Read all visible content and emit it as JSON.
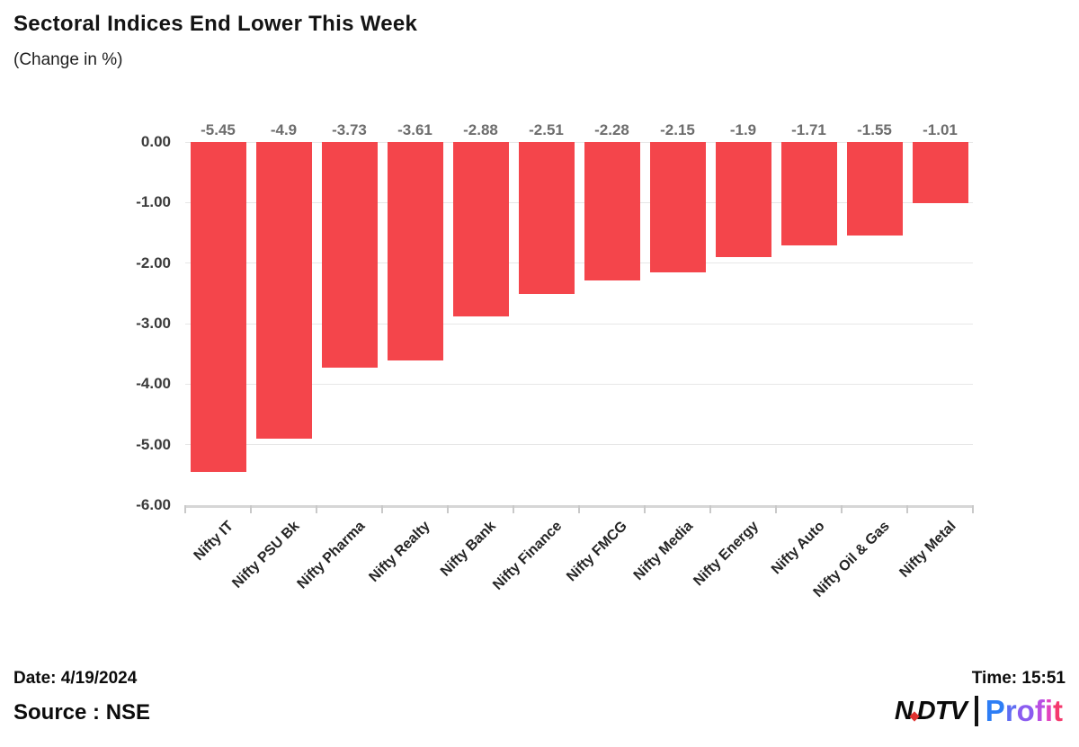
{
  "header": {
    "title": "Sectoral Indices End Lower This Week",
    "subtitle": "(Change in %)"
  },
  "footer": {
    "date": "Date: 4/19/2024",
    "time": "Time: 15:51",
    "source": "Source : NSE"
  },
  "logo": {
    "ndtv_left": "N",
    "ndtv_right": "DTV",
    "dot_color": "#e0312f",
    "profit": "Profit",
    "profit_letter_colors": [
      "#2e7ef5",
      "#5f6df2",
      "#8b5cf0",
      "#b94fe3",
      "#e243c0",
      "#f43a6e"
    ]
  },
  "chart_data": {
    "type": "bar",
    "title": "Sectoral Indices End Lower This Week",
    "subtitle": "(Change in %)",
    "categories": [
      "Nifty IT",
      "Nifty PSU Bk",
      "Nifty Pharma",
      "Nifty Realty",
      "Nifty Bank",
      "Nifty Finance",
      "Nifty FMCG",
      "Nifty Media",
      "Nifty Energy",
      "Nifty Auto",
      "Nifty Oil & Gas",
      "Nifty Metal"
    ],
    "values": [
      -5.45,
      -4.9,
      -3.73,
      -3.61,
      -2.88,
      -2.51,
      -2.28,
      -2.15,
      -1.9,
      -1.71,
      -1.55,
      -1.01
    ],
    "data_labels": [
      "-5.45",
      "-4.9",
      "-3.73",
      "-3.61",
      "-2.88",
      "-2.51",
      "-2.28",
      "-2.15",
      "-1.9",
      "-1.71",
      "-1.55",
      "-1.01"
    ],
    "yticks": [
      "0.00",
      "-1.00",
      "-2.00",
      "-3.00",
      "-4.00",
      "-5.00",
      "-6.00"
    ],
    "ylim": [
      -6,
      0
    ],
    "xlabel": "",
    "ylabel": "",
    "grid": true,
    "legend": false,
    "bar_color": "#f4454b",
    "grid_color": "#e7e7e7",
    "axis_color": "#d6d6d6"
  }
}
